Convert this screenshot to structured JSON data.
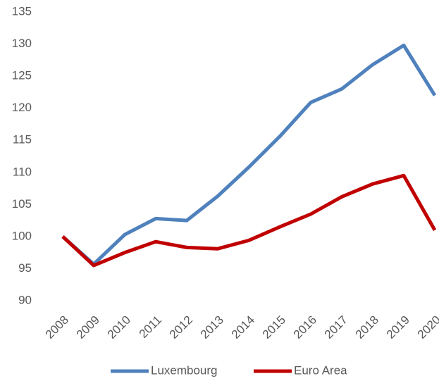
{
  "chart_data": {
    "type": "line",
    "categories": [
      "2008",
      "2009",
      "2010",
      "2011",
      "2012",
      "2013",
      "2014",
      "2015",
      "2016",
      "2017",
      "2018",
      "2019",
      "2020"
    ],
    "series": [
      {
        "name": "Luxembourg",
        "color": "#4f81bd",
        "values": [
          100,
          95.7,
          100.3,
          102.8,
          102.5,
          106.3,
          110.8,
          115.6,
          120.9,
          123,
          126.8,
          129.8,
          122
        ]
      },
      {
        "name": "Euro Area",
        "color": "#c00000",
        "values": [
          100,
          95.5,
          97.5,
          99.2,
          98.3,
          98.1,
          99.4,
          101.5,
          103.5,
          106.2,
          108.2,
          109.5,
          101
        ]
      }
    ],
    "ylim": [
      90,
      135
    ],
    "yticks": [
      90,
      95,
      100,
      105,
      110,
      115,
      120,
      125,
      130,
      135
    ],
    "grid": false,
    "legend": "bottom"
  }
}
